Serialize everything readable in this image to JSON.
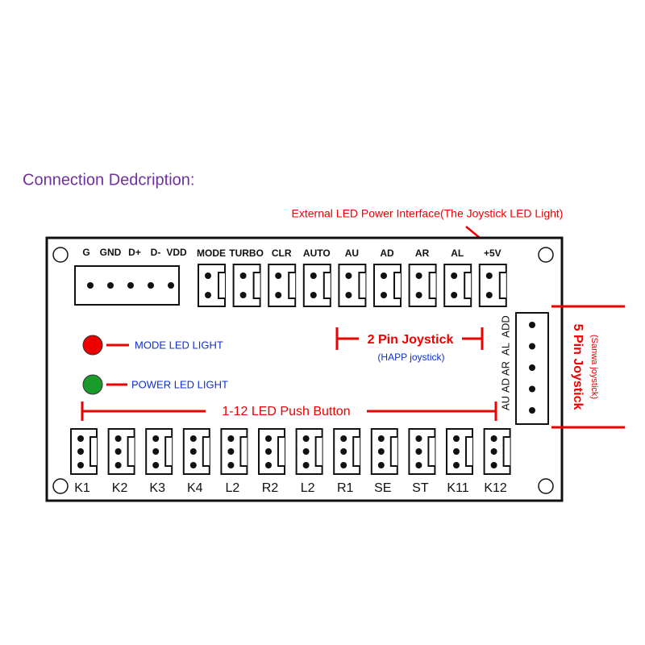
{
  "title": "Connection Dedcription:",
  "external_label": "External LED Power Interface(The Joystick LED Light)",
  "usb_pins": [
    "G",
    "GND",
    "D+",
    "D-",
    "VDD"
  ],
  "top_connectors": [
    "MODE",
    "TURBO",
    "CLR",
    "AUTO",
    "AU",
    "AD",
    "AR",
    "AL",
    "+5V"
  ],
  "mode_led": "MODE LED LIGHT",
  "power_led": "POWER LED LIGHT",
  "joystick2": {
    "label": "2 Pin Joystick",
    "sub": "(HAPP joystick)"
  },
  "joystick5": {
    "pins": [
      "AU",
      "AD",
      "AR",
      "AL",
      "ADD"
    ],
    "label": "5 Pin Joystick",
    "sub": "(Sanwa joystick)"
  },
  "buttons_label": "1-12 LED Push Button",
  "buttons": [
    "K1",
    "K2",
    "K3",
    "K4",
    "L2",
    "R2",
    "L2",
    "R1",
    "SE",
    "ST",
    "K11",
    "K12"
  ]
}
